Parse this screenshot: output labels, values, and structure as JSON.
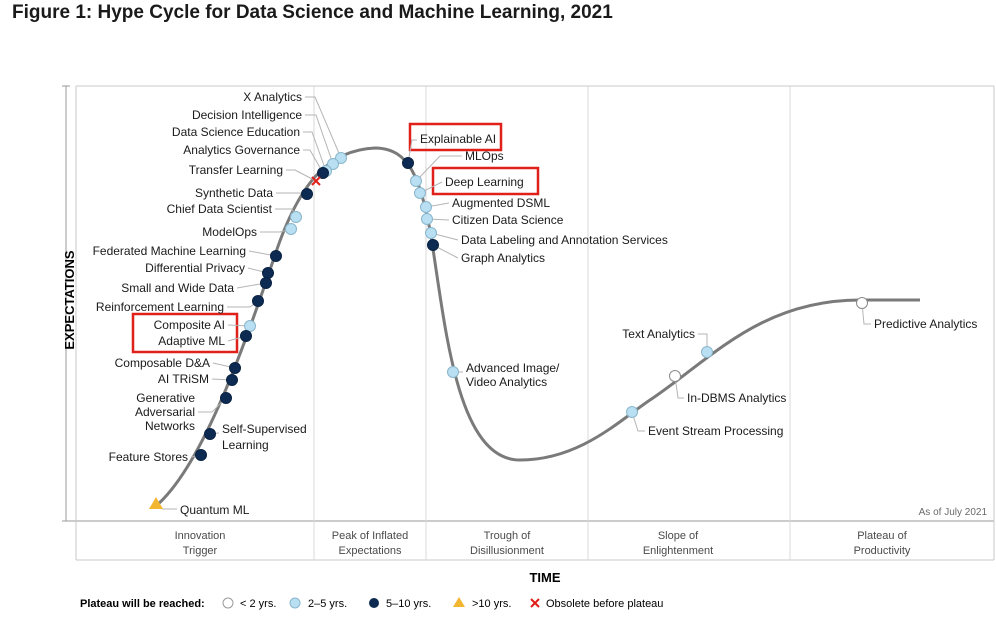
{
  "title": "Figure 1: Hype Cycle for Data Science and Machine Learning, 2021",
  "y_axis_label": "EXPECTATIONS",
  "x_axis_label": "TIME",
  "as_of": "As of July 2021",
  "phases": [
    {
      "line1": "Innovation",
      "line2": "Trigger"
    },
    {
      "line1": "Peak of Inflated",
      "line2": "Expectations"
    },
    {
      "line1": "Trough of",
      "line2": "Disillusionment"
    },
    {
      "line1": "Slope of",
      "line2": "Enlightenment"
    },
    {
      "line1": "Plateau of",
      "line2": "Productivity"
    }
  ],
  "legend": {
    "title": "Plateau will be reached:",
    "items": [
      {
        "key": "lt2",
        "label": "< 2 yrs."
      },
      {
        "key": "2to5",
        "label": "2–5 yrs."
      },
      {
        "key": "5to10",
        "label": "5–10 yrs."
      },
      {
        "key": "gt10",
        "label": ">10 yrs."
      },
      {
        "key": "obsolete",
        "label": "Obsolete before plateau"
      }
    ]
  },
  "marker_colors": {
    "lt2": "#ffffff",
    "2to5": "#b8dff2",
    "5to10": "#0d2b52",
    "gt10": "#f2b630",
    "obsolete": "#e0201b"
  },
  "highlight_color": "#e0201b",
  "technologies": [
    {
      "name": "X Analytics",
      "category": "2to5"
    },
    {
      "name": "Decision Intelligence",
      "category": "2to5"
    },
    {
      "name": "Data Science Education",
      "category": "2to5"
    },
    {
      "name": "Analytics Governance",
      "category": "5to10"
    },
    {
      "name": "Transfer Learning",
      "category": "obsolete"
    },
    {
      "name": "Synthetic Data",
      "category": "5to10"
    },
    {
      "name": "Chief Data Scientist",
      "category": "2to5"
    },
    {
      "name": "ModelOps",
      "category": "2to5"
    },
    {
      "name": "Federated Machine Learning",
      "category": "5to10"
    },
    {
      "name": "Differential Privacy",
      "category": "5to10"
    },
    {
      "name": "Small and Wide Data",
      "category": "5to10"
    },
    {
      "name": "Reinforcement Learning",
      "category": "5to10"
    },
    {
      "name": "Composite AI",
      "category": "2to5",
      "highlighted": true
    },
    {
      "name": "Adaptive ML",
      "category": "5to10",
      "highlighted": true
    },
    {
      "name": "Composable D&A",
      "category": "5to10"
    },
    {
      "name": "AI TRiSM",
      "category": "5to10"
    },
    {
      "name": "Generative Adversarial Networks",
      "category": "5to10"
    },
    {
      "name": "Self-Supervised Learning",
      "category": "5to10"
    },
    {
      "name": "Feature Stores",
      "category": "5to10"
    },
    {
      "name": "Quantum ML",
      "category": "gt10"
    },
    {
      "name": "Explainable AI",
      "category": "5to10",
      "highlighted": true
    },
    {
      "name": "MLOps",
      "category": "2to5"
    },
    {
      "name": "Deep Learning",
      "category": "2to5",
      "highlighted": true
    },
    {
      "name": "Augmented DSML",
      "category": "2to5"
    },
    {
      "name": "Citizen Data Science",
      "category": "2to5"
    },
    {
      "name": "Data Labeling and Annotation Services",
      "category": "2to5"
    },
    {
      "name": "Graph Analytics",
      "category": "5to10"
    },
    {
      "name": "Advanced Image/ Video Analytics",
      "category": "2to5"
    },
    {
      "name": "Text Analytics",
      "category": "2to5"
    },
    {
      "name": "In-DBMS Analytics",
      "category": "lt2"
    },
    {
      "name": "Event Stream Processing",
      "category": "2to5"
    },
    {
      "name": "Predictive Analytics",
      "category": "lt2"
    }
  ]
}
